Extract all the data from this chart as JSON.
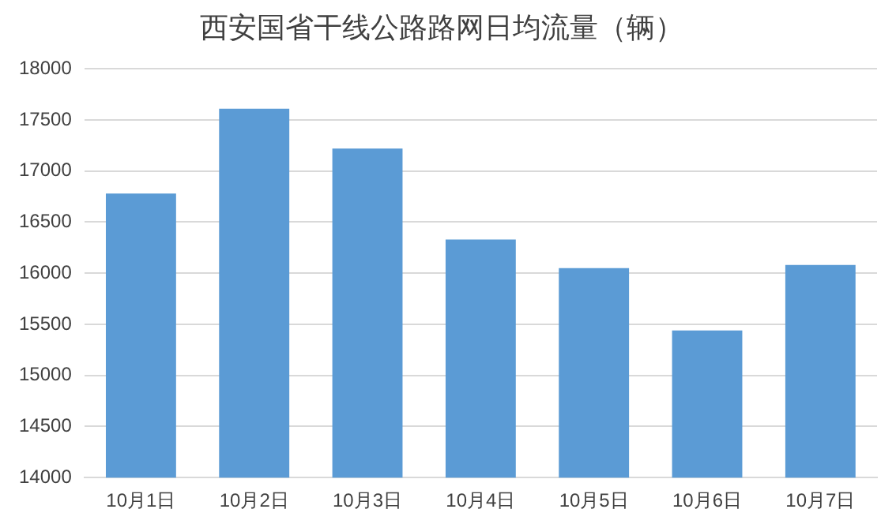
{
  "chart_data": {
    "type": "bar",
    "title": "西安国省干线公路路网日均流量（辆）",
    "categories": [
      "10月1日",
      "10月2日",
      "10月3日",
      "10月4日",
      "10月5日",
      "10月6日",
      "10月7日"
    ],
    "values": [
      16780,
      17610,
      17220,
      16330,
      16050,
      15440,
      16080
    ],
    "color": "#5b9bd5",
    "ylim": [
      14000,
      18000
    ],
    "yticks": [
      14000,
      14500,
      15000,
      15500,
      16000,
      16500,
      17000,
      17500,
      18000
    ],
    "grid": "y",
    "legend": false
  }
}
